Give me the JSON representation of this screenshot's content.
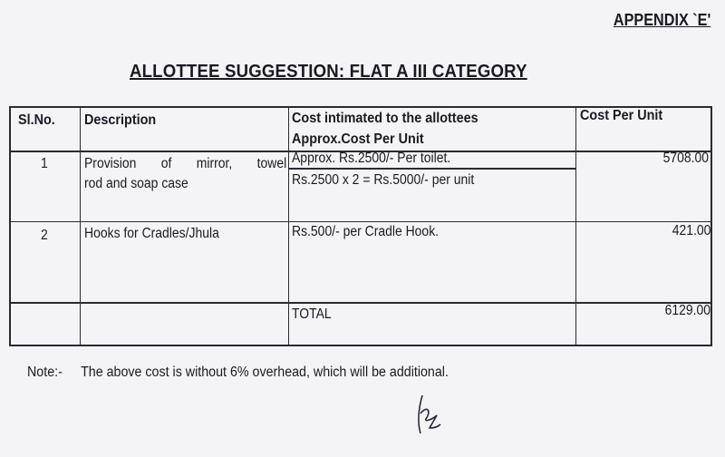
{
  "appendix_label": "APPENDIX `E'",
  "title": "ALLOTTEE SUGGESTION: FLAT A III CATEGORY",
  "table": {
    "headers": [
      "Sl.No.",
      "Description",
      "Cost intimated to the allottees",
      "Approx.Cost Per Unit",
      "Cost Per Unit"
    ],
    "rows": [
      {
        "sl": "1",
        "desc_line1": "Provision of mirror, towel",
        "desc_line2": "rod and soap case",
        "cost_line1": "Approx. Rs.2500/- Per toilet.",
        "cost_line2": "Rs.2500 x 2 = Rs.5000/- per unit",
        "unit_cost": "5708.00"
      },
      {
        "sl": "2",
        "desc_line1": "Hooks for Cradles/Jhula",
        "cost_line1": "Rs.500/- per Cradle Hook.",
        "unit_cost": "421.00"
      }
    ],
    "total_label": "TOTAL",
    "total_value": "6129.00"
  },
  "note": {
    "label": "Note:-",
    "text": "The above cost is without 6% overhead, which will be additional."
  }
}
